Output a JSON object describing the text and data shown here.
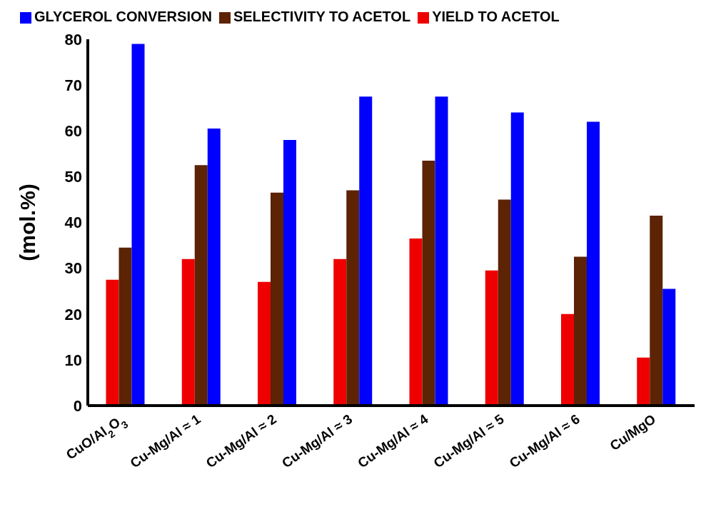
{
  "chart_data": {
    "type": "bar",
    "ylabel": "(mol.%)",
    "categories": [
      "CuO/Al$_{2}$O$_{3}$",
      "Cu-Mg/Al ≈ 1",
      "Cu-Mg/Al ≈ 2",
      "Cu-Mg/Al ≈ 3",
      "Cu-Mg/Al ≈ 4",
      "Cu-Mg/Al ≈ 5",
      "Cu-Mg/Al ≈ 6",
      "Cu/MgO"
    ],
    "series": [
      {
        "name": "YIELD TO ACETOL",
        "color": "#ee0000",
        "values": [
          27.5,
          32,
          27,
          32,
          36.5,
          29.5,
          20,
          10.5
        ]
      },
      {
        "name": "SELECTIVITY TO ACETOL",
        "color": "#5c2305",
        "values": [
          34.5,
          52.5,
          46.5,
          47,
          53.5,
          45,
          32.5,
          41.5
        ]
      },
      {
        "name": "GLYCEROL CONVERSION",
        "color": "#0000ff",
        "values": [
          79,
          60.5,
          58,
          67.5,
          67.5,
          64,
          62,
          25.5
        ]
      }
    ],
    "ylim": [
      0,
      80
    ],
    "yticks": [
      0,
      10,
      20,
      30,
      40,
      50,
      60,
      70,
      80
    ],
    "grid": false,
    "legend": "top"
  }
}
